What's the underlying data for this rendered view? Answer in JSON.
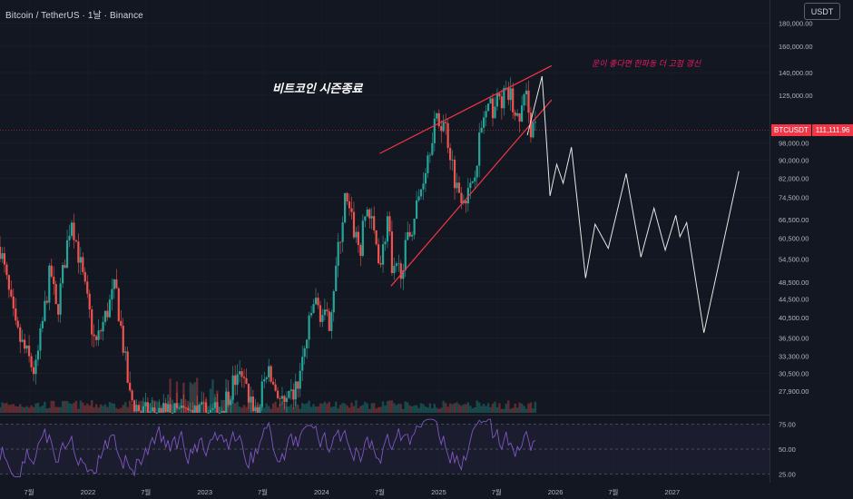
{
  "header": {
    "title": "Bitcoin / TetherUS · 1날 · Binance",
    "currency": "USDT"
  },
  "annotations": {
    "headline": "비트코인 시즌종료",
    "note": "운이 좋다면 한파동 더 고점 갱신"
  },
  "last_price": {
    "symbol": "BTCUSDT",
    "value": "111,111.96"
  },
  "colors": {
    "background": "#131722",
    "up": "#26a69a",
    "down": "#ef5350",
    "wedge": "#f23645",
    "projection": "#e6e6e6",
    "rsi": "#7e57c2",
    "text": "#b2b5be"
  },
  "chart_data": {
    "type": "candlestick",
    "scale": "log",
    "ylim": [
      25000,
      195000
    ],
    "xlim": [
      "2021-04-01",
      "2027-11-01"
    ],
    "y_ticks": [
      {
        "v": 180000,
        "label": "180,000.00"
      },
      {
        "v": 160000,
        "label": "160,000.00"
      },
      {
        "v": 140000,
        "label": "140,000.00"
      },
      {
        "v": 125000,
        "label": "125,000.00"
      },
      {
        "v": 98000,
        "label": "98,000.00"
      },
      {
        "v": 90000,
        "label": "90,000.00"
      },
      {
        "v": 82000,
        "label": "82,000.00"
      },
      {
        "v": 74500,
        "label": "74,500.00"
      },
      {
        "v": 66500,
        "label": "66,500.00"
      },
      {
        "v": 60500,
        "label": "60,500.00"
      },
      {
        "v": 54500,
        "label": "54,500.00"
      },
      {
        "v": 48500,
        "label": "48,500.00"
      },
      {
        "v": 44500,
        "label": "44,500.00"
      },
      {
        "v": 40500,
        "label": "40,500.00"
      },
      {
        "v": 36500,
        "label": "36,500.00"
      },
      {
        "v": 33300,
        "label": "33,300.00"
      },
      {
        "v": 30500,
        "label": "30,500.00"
      },
      {
        "v": 27900,
        "label": "27,900.00"
      }
    ],
    "x_ticks": [
      {
        "date": "2021-07-01",
        "label": "7월"
      },
      {
        "date": "2022-01-01",
        "label": "2022"
      },
      {
        "date": "2022-07-01",
        "label": "7월"
      },
      {
        "date": "2023-01-01",
        "label": "2023"
      },
      {
        "date": "2023-07-01",
        "label": "7월"
      },
      {
        "date": "2024-01-01",
        "label": "2024"
      },
      {
        "date": "2024-07-01",
        "label": "7월"
      },
      {
        "date": "2025-01-01",
        "label": "2025"
      },
      {
        "date": "2025-07-01",
        "label": "7월"
      },
      {
        "date": "2026-01-01",
        "label": "2026"
      },
      {
        "date": "2026-07-01",
        "label": "7월"
      },
      {
        "date": "2027-01-01",
        "label": "2027"
      }
    ],
    "price_path": [
      [
        "2021-04-01",
        58000
      ],
      [
        "2021-05-20",
        38000
      ],
      [
        "2021-07-20",
        30500
      ],
      [
        "2021-09-06",
        52000
      ],
      [
        "2021-09-25",
        41000
      ],
      [
        "2021-11-10",
        68000
      ],
      [
        "2022-01-24",
        35000
      ],
      [
        "2022-03-28",
        47500
      ],
      [
        "2022-05-12",
        27000
      ],
      [
        "2022-06-18",
        25000
      ],
      [
        "2022-08-15",
        25000
      ],
      [
        "2022-11-09",
        25000
      ],
      [
        "2022-12-30",
        25000
      ],
      [
        "2023-02-15",
        25000
      ],
      [
        "2023-04-14",
        30500
      ],
      [
        "2023-06-15",
        25000
      ],
      [
        "2023-07-13",
        31000
      ],
      [
        "2023-09-11",
        25500
      ],
      [
        "2023-10-20",
        29000
      ],
      [
        "2023-12-08",
        44000
      ],
      [
        "2024-01-23",
        39000
      ],
      [
        "2024-03-14",
        73500
      ],
      [
        "2024-05-01",
        57000
      ],
      [
        "2024-05-21",
        71500
      ],
      [
        "2024-07-05",
        53500
      ],
      [
        "2024-07-29",
        70000
      ],
      [
        "2024-08-05",
        49000
      ],
      [
        "2024-09-06",
        52500
      ],
      [
        "2024-10-29",
        73000
      ],
      [
        "2024-12-17",
        108000
      ],
      [
        "2025-01-20",
        109000
      ],
      [
        "2025-02-27",
        78000
      ],
      [
        "2025-04-07",
        75000
      ],
      [
        "2025-05-22",
        112000
      ],
      [
        "2025-07-14",
        123000
      ],
      [
        "2025-08-14",
        124500
      ],
      [
        "2025-09-01",
        108000
      ],
      [
        "2025-10-06",
        126000
      ],
      [
        "2025-10-17",
        104000
      ],
      [
        "2025-11-01",
        111112
      ]
    ],
    "wedge_lines": [
      [
        [
          "2024-07-01",
          93000
        ],
        [
          "2025-12-20",
          145000
        ]
      ],
      [
        [
          "2024-08-05",
          47500
        ],
        [
          "2025-12-20",
          122000
        ]
      ]
    ],
    "projection_path": [
      [
        "2025-10-05",
        102000
      ],
      [
        "2025-11-20",
        137500
      ],
      [
        "2025-12-02",
        104000
      ],
      [
        "2025-12-15",
        75000
      ],
      [
        "2026-01-05",
        88000
      ],
      [
        "2026-01-25",
        80000
      ],
      [
        "2026-02-20",
        96000
      ],
      [
        "2026-04-05",
        49500
      ],
      [
        "2026-05-05",
        65000
      ],
      [
        "2026-06-15",
        57500
      ],
      [
        "2026-08-10",
        84000
      ],
      [
        "2026-09-25",
        55000
      ],
      [
        "2026-11-05",
        70500
      ],
      [
        "2026-12-10",
        57000
      ],
      [
        "2027-01-12",
        68000
      ],
      [
        "2027-01-25",
        61000
      ],
      [
        "2027-02-15",
        65500
      ],
      [
        "2027-04-10",
        37500
      ],
      [
        "2027-07-28",
        85000
      ]
    ],
    "rsi": {
      "levels": [
        75.0,
        50.0,
        25.0
      ],
      "ylim": [
        18,
        82
      ]
    }
  }
}
